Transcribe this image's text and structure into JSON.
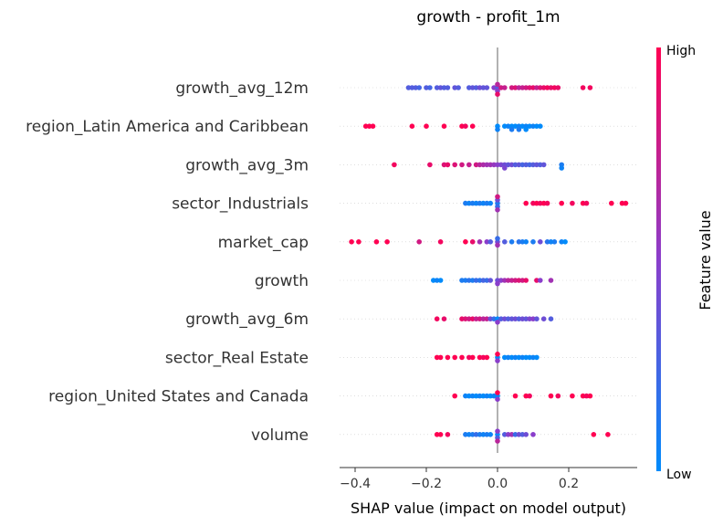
{
  "chart_data": {
    "type": "scatter",
    "subtype": "shap-beeswarm",
    "title": "growth - profit_1m",
    "xlabel": "SHAP value (impact on model output)",
    "xlim": [
      -0.44,
      0.37
    ],
    "xticks": [
      -0.4,
      -0.2,
      0.0,
      0.2
    ],
    "xtick_labels": [
      "−0.4",
      "−0.2",
      "0.0",
      "0.2"
    ],
    "colorbar": {
      "label": "Feature value",
      "high": "High",
      "low": "Low",
      "low_color": "#008bfb",
      "high_color": "#ff0052"
    },
    "features": [
      {
        "name": "growth_avg_12m",
        "points": [
          [
            -0.25,
            0.3
          ],
          [
            -0.24,
            0.3
          ],
          [
            -0.23,
            0.3
          ],
          [
            -0.22,
            0.25
          ],
          [
            -0.2,
            0.3
          ],
          [
            -0.19,
            0.25
          ],
          [
            -0.17,
            0.3
          ],
          [
            -0.16,
            0.35
          ],
          [
            -0.15,
            0.3
          ],
          [
            -0.14,
            0.3
          ],
          [
            -0.12,
            0.35
          ],
          [
            -0.11,
            0.3
          ],
          [
            -0.08,
            0.3
          ],
          [
            -0.07,
            0.35
          ],
          [
            -0.06,
            0.3
          ],
          [
            -0.05,
            0.4
          ],
          [
            -0.04,
            0.35
          ],
          [
            -0.03,
            0.35
          ],
          [
            -0.01,
            0.5
          ],
          [
            0.0,
            0.3
          ],
          [
            0.0,
            0.5
          ],
          [
            0.0,
            0.7
          ],
          [
            0.0,
            0.9
          ],
          [
            0.01,
            0.8
          ],
          [
            0.02,
            0.75
          ],
          [
            0.04,
            0.8
          ],
          [
            0.05,
            0.85
          ],
          [
            0.06,
            0.7
          ],
          [
            0.07,
            0.75
          ],
          [
            0.08,
            0.8
          ],
          [
            0.09,
            0.85
          ],
          [
            0.1,
            0.9
          ],
          [
            0.11,
            0.75
          ],
          [
            0.12,
            0.85
          ],
          [
            0.13,
            0.9
          ],
          [
            0.14,
            0.95
          ],
          [
            0.15,
            0.9
          ],
          [
            0.16,
            0.95
          ],
          [
            0.17,
            0.9
          ],
          [
            0.24,
            0.95
          ],
          [
            0.26,
            0.95
          ]
        ]
      },
      {
        "name": "region_Latin America and Caribbean",
        "points": [
          [
            -0.37,
            1.0
          ],
          [
            -0.36,
            1.0
          ],
          [
            -0.35,
            1.0
          ],
          [
            -0.24,
            1.0
          ],
          [
            -0.2,
            1.0
          ],
          [
            -0.15,
            1.0
          ],
          [
            -0.1,
            1.0
          ],
          [
            -0.09,
            0.95
          ],
          [
            -0.07,
            1.0
          ],
          [
            0.0,
            0.0
          ],
          [
            0.0,
            0.05
          ],
          [
            0.02,
            0.0
          ],
          [
            0.03,
            0.05
          ],
          [
            0.04,
            0.0
          ],
          [
            0.05,
            0.0
          ],
          [
            0.06,
            0.05
          ],
          [
            0.07,
            0.0
          ],
          [
            0.08,
            0.05
          ],
          [
            0.09,
            0.0
          ],
          [
            0.1,
            0.05
          ],
          [
            0.11,
            0.0
          ],
          [
            0.12,
            0.0
          ],
          [
            0.04,
            0.1
          ],
          [
            0.06,
            0.1
          ],
          [
            0.08,
            0.0
          ]
        ]
      },
      {
        "name": "growth_avg_3m",
        "points": [
          [
            -0.29,
            0.95
          ],
          [
            -0.19,
            0.9
          ],
          [
            -0.15,
            0.85
          ],
          [
            -0.14,
            0.9
          ],
          [
            -0.12,
            0.85
          ],
          [
            -0.1,
            0.8
          ],
          [
            -0.08,
            0.75
          ],
          [
            -0.06,
            0.8
          ],
          [
            -0.05,
            0.7
          ],
          [
            -0.04,
            0.65
          ],
          [
            -0.03,
            0.6
          ],
          [
            -0.02,
            0.6
          ],
          [
            -0.01,
            0.55
          ],
          [
            0.0,
            0.5
          ],
          [
            0.01,
            0.45
          ],
          [
            0.02,
            0.4
          ],
          [
            0.03,
            0.35
          ],
          [
            0.04,
            0.4
          ],
          [
            0.05,
            0.3
          ],
          [
            0.06,
            0.35
          ],
          [
            0.07,
            0.25
          ],
          [
            0.08,
            0.3
          ],
          [
            0.09,
            0.25
          ],
          [
            0.1,
            0.3
          ],
          [
            0.11,
            0.35
          ],
          [
            0.12,
            0.3
          ],
          [
            0.13,
            0.35
          ],
          [
            0.18,
            0.1
          ],
          [
            0.18,
            0.05
          ],
          [
            0.02,
            0.45
          ]
        ]
      },
      {
        "name": "sector_Industrials",
        "points": [
          [
            -0.09,
            0.1
          ],
          [
            -0.08,
            0.05
          ],
          [
            -0.07,
            0.1
          ],
          [
            -0.06,
            0.05
          ],
          [
            -0.05,
            0.1
          ],
          [
            -0.04,
            0.05
          ],
          [
            -0.03,
            0.1
          ],
          [
            -0.02,
            0.05
          ],
          [
            0.0,
            0.1
          ],
          [
            0.0,
            0.2
          ],
          [
            0.0,
            0.4
          ],
          [
            0.0,
            0.6
          ],
          [
            0.0,
            0.8
          ],
          [
            0.08,
            1.0
          ],
          [
            0.1,
            0.95
          ],
          [
            0.11,
            1.0
          ],
          [
            0.12,
            0.95
          ],
          [
            0.13,
            1.0
          ],
          [
            0.14,
            0.95
          ],
          [
            0.18,
            1.0
          ],
          [
            0.21,
            0.95
          ],
          [
            0.24,
            1.0
          ],
          [
            0.25,
            0.95
          ],
          [
            0.32,
            1.0
          ],
          [
            0.35,
            1.0
          ],
          [
            0.36,
            1.0
          ]
        ]
      },
      {
        "name": "market_cap",
        "points": [
          [
            -0.41,
            1.0
          ],
          [
            -0.39,
            1.0
          ],
          [
            -0.34,
            1.0
          ],
          [
            -0.31,
            1.0
          ],
          [
            -0.22,
            0.8
          ],
          [
            -0.16,
            0.95
          ],
          [
            -0.09,
            1.0
          ],
          [
            -0.07,
            0.9
          ],
          [
            -0.05,
            0.6
          ],
          [
            -0.03,
            0.5
          ],
          [
            -0.02,
            0.3
          ],
          [
            0.0,
            0.4
          ],
          [
            0.0,
            0.6
          ],
          [
            0.0,
            0.2
          ],
          [
            0.02,
            0.3
          ],
          [
            0.04,
            0.1
          ],
          [
            0.06,
            0.15
          ],
          [
            0.07,
            0.1
          ],
          [
            0.08,
            0.05
          ],
          [
            0.1,
            0.1
          ],
          [
            0.12,
            0.4
          ],
          [
            0.14,
            0.15
          ],
          [
            0.16,
            0.1
          ],
          [
            0.18,
            0.05
          ],
          [
            0.19,
            0.0
          ],
          [
            0.15,
            0.05
          ]
        ]
      },
      {
        "name": "growth",
        "points": [
          [
            -0.18,
            0.0
          ],
          [
            -0.17,
            0.05
          ],
          [
            -0.16,
            0.0
          ],
          [
            -0.1,
            0.1
          ],
          [
            -0.09,
            0.1
          ],
          [
            -0.08,
            0.15
          ],
          [
            -0.07,
            0.1
          ],
          [
            -0.06,
            0.2
          ],
          [
            -0.05,
            0.15
          ],
          [
            -0.04,
            0.25
          ],
          [
            -0.03,
            0.2
          ],
          [
            -0.02,
            0.35
          ],
          [
            0.0,
            0.4
          ],
          [
            0.0,
            0.5
          ],
          [
            0.01,
            0.5
          ],
          [
            0.02,
            0.6
          ],
          [
            0.03,
            0.7
          ],
          [
            0.04,
            0.75
          ],
          [
            0.05,
            0.8
          ],
          [
            0.06,
            0.85
          ],
          [
            0.07,
            0.8
          ],
          [
            0.08,
            0.9
          ],
          [
            0.11,
            0.9
          ],
          [
            0.12,
            0.5
          ],
          [
            0.15,
            0.6
          ]
        ]
      },
      {
        "name": "growth_avg_6m",
        "points": [
          [
            -0.17,
            0.95
          ],
          [
            -0.15,
            0.9
          ],
          [
            -0.1,
            0.9
          ],
          [
            -0.09,
            0.85
          ],
          [
            -0.08,
            0.8
          ],
          [
            -0.07,
            0.9
          ],
          [
            -0.06,
            0.75
          ],
          [
            -0.05,
            0.8
          ],
          [
            -0.04,
            0.7
          ],
          [
            -0.03,
            0.75
          ],
          [
            -0.02,
            0.4
          ],
          [
            -0.01,
            0.2
          ],
          [
            0.0,
            0.0
          ],
          [
            0.0,
            0.5
          ],
          [
            0.01,
            0.3
          ],
          [
            0.02,
            0.4
          ],
          [
            0.03,
            0.3
          ],
          [
            0.04,
            0.35
          ],
          [
            0.05,
            0.4
          ],
          [
            0.06,
            0.3
          ],
          [
            0.07,
            0.4
          ],
          [
            0.08,
            0.35
          ],
          [
            0.09,
            0.45
          ],
          [
            0.1,
            0.5
          ],
          [
            0.11,
            0.35
          ],
          [
            0.13,
            0.4
          ],
          [
            0.15,
            0.3
          ]
        ]
      },
      {
        "name": "sector_Real Estate",
        "points": [
          [
            -0.17,
            1.0
          ],
          [
            -0.16,
            1.0
          ],
          [
            -0.14,
            1.0
          ],
          [
            -0.12,
            1.0
          ],
          [
            -0.1,
            1.0
          ],
          [
            -0.08,
            0.95
          ],
          [
            -0.07,
            1.0
          ],
          [
            -0.05,
            1.0
          ],
          [
            -0.04,
            0.95
          ],
          [
            -0.03,
            1.0
          ],
          [
            0.0,
            0.0
          ],
          [
            0.0,
            0.5
          ],
          [
            0.0,
            1.0
          ],
          [
            0.02,
            0.0
          ],
          [
            0.03,
            0.05
          ],
          [
            0.04,
            0.0
          ],
          [
            0.05,
            0.05
          ],
          [
            0.06,
            0.0
          ],
          [
            0.07,
            0.05
          ],
          [
            0.08,
            0.0
          ],
          [
            0.09,
            0.0
          ],
          [
            0.1,
            0.05
          ],
          [
            0.11,
            0.0
          ]
        ]
      },
      {
        "name": "region_United States and Canada",
        "points": [
          [
            -0.12,
            1.0
          ],
          [
            -0.09,
            0.05
          ],
          [
            -0.08,
            0.0
          ],
          [
            -0.07,
            0.05
          ],
          [
            -0.06,
            0.0
          ],
          [
            -0.05,
            0.05
          ],
          [
            -0.04,
            0.0
          ],
          [
            -0.03,
            0.05
          ],
          [
            -0.02,
            0.0
          ],
          [
            -0.01,
            0.05
          ],
          [
            0.0,
            0.0
          ],
          [
            0.0,
            0.5
          ],
          [
            0.0,
            1.0
          ],
          [
            0.05,
            1.0
          ],
          [
            0.08,
            1.0
          ],
          [
            0.09,
            0.95
          ],
          [
            0.15,
            1.0
          ],
          [
            0.17,
            0.95
          ],
          [
            0.21,
            1.0
          ],
          [
            0.24,
            1.0
          ],
          [
            0.25,
            0.95
          ],
          [
            0.26,
            1.0
          ]
        ]
      },
      {
        "name": "volume",
        "points": [
          [
            -0.17,
            1.0
          ],
          [
            -0.16,
            1.0
          ],
          [
            -0.14,
            0.95
          ],
          [
            -0.09,
            0.1
          ],
          [
            -0.08,
            0.05
          ],
          [
            -0.07,
            0.1
          ],
          [
            -0.06,
            0.2
          ],
          [
            -0.05,
            0.1
          ],
          [
            -0.04,
            0.05
          ],
          [
            -0.03,
            0.1
          ],
          [
            -0.02,
            0.05
          ],
          [
            0.0,
            0.0
          ],
          [
            0.0,
            0.3
          ],
          [
            0.0,
            0.5
          ],
          [
            0.0,
            0.7
          ],
          [
            0.02,
            0.3
          ],
          [
            0.03,
            0.5
          ],
          [
            0.04,
            0.6
          ],
          [
            0.05,
            0.2
          ],
          [
            0.06,
            0.4
          ],
          [
            0.07,
            0.3
          ],
          [
            0.08,
            0.4
          ],
          [
            0.1,
            0.5
          ],
          [
            0.27,
            1.0
          ],
          [
            0.31,
            1.0
          ]
        ]
      }
    ]
  }
}
